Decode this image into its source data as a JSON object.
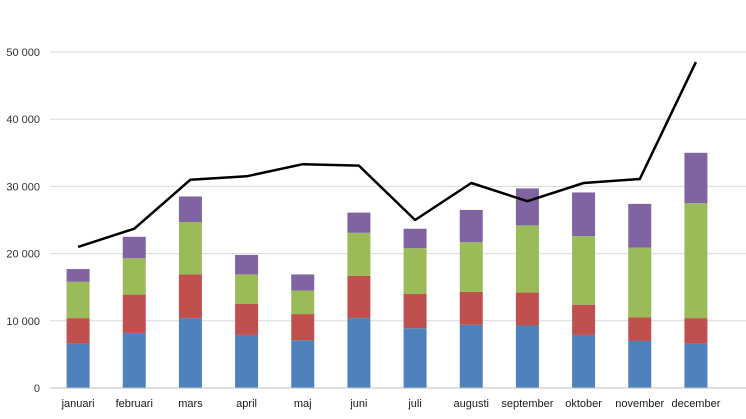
{
  "chart_data": {
    "type": "bar",
    "stacked": true,
    "categories": [
      "januari",
      "februari",
      "mars",
      "april",
      "maj",
      "juni",
      "juli",
      "augusti",
      "september",
      "oktober",
      "november",
      "december"
    ],
    "series": [
      {
        "color": "#4f81bd",
        "values": [
          6600,
          8200,
          10400,
          7900,
          7100,
          10400,
          8900,
          9400,
          9300,
          7900,
          7000,
          6600
        ]
      },
      {
        "color": "#c0504d",
        "values": [
          3800,
          5700,
          6500,
          4600,
          3900,
          6300,
          5100,
          4900,
          4900,
          4500,
          3500,
          3800
        ]
      },
      {
        "color": "#9bbb59",
        "values": [
          5400,
          5400,
          7800,
          4400,
          3500,
          6400,
          6800,
          7400,
          10000,
          10200,
          10400,
          17100
        ]
      },
      {
        "color": "#8064a2",
        "values": [
          1900,
          3200,
          3800,
          2900,
          2400,
          3000,
          2900,
          4800,
          5500,
          6500,
          6500,
          7500
        ]
      }
    ],
    "line_series": {
      "color": "#000000",
      "values": [
        21000,
        23700,
        31000,
        31500,
        33300,
        33100,
        25000,
        30500,
        27800,
        30500,
        31100,
        48500
      ]
    },
    "yticks": [
      "0",
      "10 000",
      "20 000",
      "30 000",
      "40 000",
      "50 000"
    ],
    "ylim": [
      0,
      50000
    ],
    "grid": true,
    "title": "",
    "xlabel": "",
    "ylabel": ""
  }
}
